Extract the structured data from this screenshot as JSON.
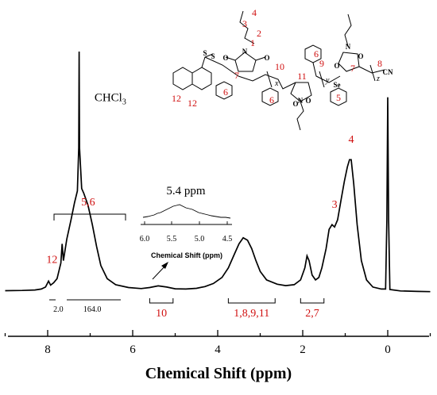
{
  "chart_data": {
    "type": "line",
    "xlabel": "Chemical Shift (ppm)",
    "xlim": [
      9.0,
      -1.0
    ],
    "x_reversed": true,
    "x_ticks": [
      8,
      6,
      4,
      2,
      0
    ],
    "spectrum_points": [
      [
        9.0,
        0.005
      ],
      [
        8.6,
        0.006
      ],
      [
        8.3,
        0.008
      ],
      [
        8.15,
        0.012
      ],
      [
        8.05,
        0.02
      ],
      [
        7.98,
        0.045
      ],
      [
        7.93,
        0.028
      ],
      [
        7.86,
        0.038
      ],
      [
        7.78,
        0.055
      ],
      [
        7.73,
        0.09
      ],
      [
        7.69,
        0.12
      ],
      [
        7.66,
        0.2
      ],
      [
        7.63,
        0.13
      ],
      [
        7.55,
        0.22
      ],
      [
        7.45,
        0.3
      ],
      [
        7.37,
        0.37
      ],
      [
        7.3,
        0.42
      ],
      [
        7.27,
        0.6
      ],
      [
        7.26,
        1.0
      ],
      [
        7.25,
        0.6
      ],
      [
        7.2,
        0.43
      ],
      [
        7.15,
        0.41
      ],
      [
        7.05,
        0.36
      ],
      [
        6.95,
        0.28
      ],
      [
        6.85,
        0.19
      ],
      [
        6.75,
        0.11
      ],
      [
        6.6,
        0.055
      ],
      [
        6.4,
        0.03
      ],
      [
        6.1,
        0.018
      ],
      [
        5.8,
        0.014
      ],
      [
        5.6,
        0.018
      ],
      [
        5.4,
        0.025
      ],
      [
        5.2,
        0.02
      ],
      [
        5.0,
        0.013
      ],
      [
        4.75,
        0.012
      ],
      [
        4.5,
        0.015
      ],
      [
        4.3,
        0.022
      ],
      [
        4.1,
        0.035
      ],
      [
        3.9,
        0.06
      ],
      [
        3.75,
        0.1
      ],
      [
        3.6,
        0.16
      ],
      [
        3.5,
        0.2
      ],
      [
        3.4,
        0.225
      ],
      [
        3.3,
        0.215
      ],
      [
        3.2,
        0.18
      ],
      [
        3.1,
        0.13
      ],
      [
        3.0,
        0.085
      ],
      [
        2.85,
        0.05
      ],
      [
        2.6,
        0.032
      ],
      [
        2.4,
        0.026
      ],
      [
        2.2,
        0.03
      ],
      [
        2.05,
        0.05
      ],
      [
        1.95,
        0.1
      ],
      [
        1.9,
        0.15
      ],
      [
        1.85,
        0.13
      ],
      [
        1.78,
        0.07
      ],
      [
        1.7,
        0.05
      ],
      [
        1.62,
        0.06
      ],
      [
        1.55,
        0.1
      ],
      [
        1.45,
        0.18
      ],
      [
        1.38,
        0.26
      ],
      [
        1.31,
        0.28
      ],
      [
        1.25,
        0.27
      ],
      [
        1.18,
        0.3
      ],
      [
        1.1,
        0.38
      ],
      [
        1.02,
        0.46
      ],
      [
        0.95,
        0.52
      ],
      [
        0.9,
        0.55
      ],
      [
        0.86,
        0.55
      ],
      [
        0.8,
        0.45
      ],
      [
        0.72,
        0.28
      ],
      [
        0.62,
        0.13
      ],
      [
        0.5,
        0.05
      ],
      [
        0.35,
        0.02
      ],
      [
        0.15,
        0.012
      ],
      [
        0.05,
        0.012
      ],
      [
        0.02,
        0.3
      ],
      [
        0.0,
        0.81
      ],
      [
        -0.02,
        0.3
      ],
      [
        -0.05,
        0.01
      ],
      [
        -0.3,
        0.004
      ],
      [
        -0.7,
        0.002
      ],
      [
        -1.0,
        0.001
      ]
    ],
    "peak_labels": [
      {
        "text": "12",
        "x": 7.9,
        "y": 0.1
      },
      {
        "text": "5,6",
        "x": 7.05,
        "y": 0.34
      },
      {
        "text": "4",
        "x": 0.86,
        "y": 0.6
      },
      {
        "text": "3",
        "x": 1.25,
        "y": 0.33
      }
    ],
    "solvent_label": {
      "main": "CHCl",
      "sub": "3",
      "x": 6.9,
      "y": 0.8
    },
    "integration_regions": [
      {
        "label": "10",
        "x_start": 5.6,
        "x_end": 5.05
      },
      {
        "label": "1,8,9,11",
        "x_start": 3.75,
        "x_end": 2.65
      },
      {
        "label": "2,7",
        "x_start": 2.05,
        "x_end": 1.5
      }
    ],
    "integral_values": [
      {
        "text": "2.0",
        "x": 7.75
      },
      {
        "text": "164.0",
        "x": 6.95
      }
    ],
    "inset": {
      "annotation": "5.4 ppm",
      "xlabel": "Chemical Shift (ppm)",
      "x_ticks": [
        "6.0",
        "5.5",
        "5.0",
        "4.5"
      ]
    }
  },
  "structure": {
    "atom_labels": [
      "S",
      "S",
      "N",
      "O",
      "O",
      "O",
      "O",
      "N",
      "N",
      "O",
      "O",
      "Se",
      "CN"
    ],
    "numbers": [
      "1",
      "2",
      "3",
      "4",
      "7",
      "10",
      "11",
      "9",
      "7",
      "8",
      "12",
      "12",
      "6",
      "6",
      "6",
      "5"
    ],
    "subscripts": [
      "x",
      "y",
      "z"
    ]
  }
}
